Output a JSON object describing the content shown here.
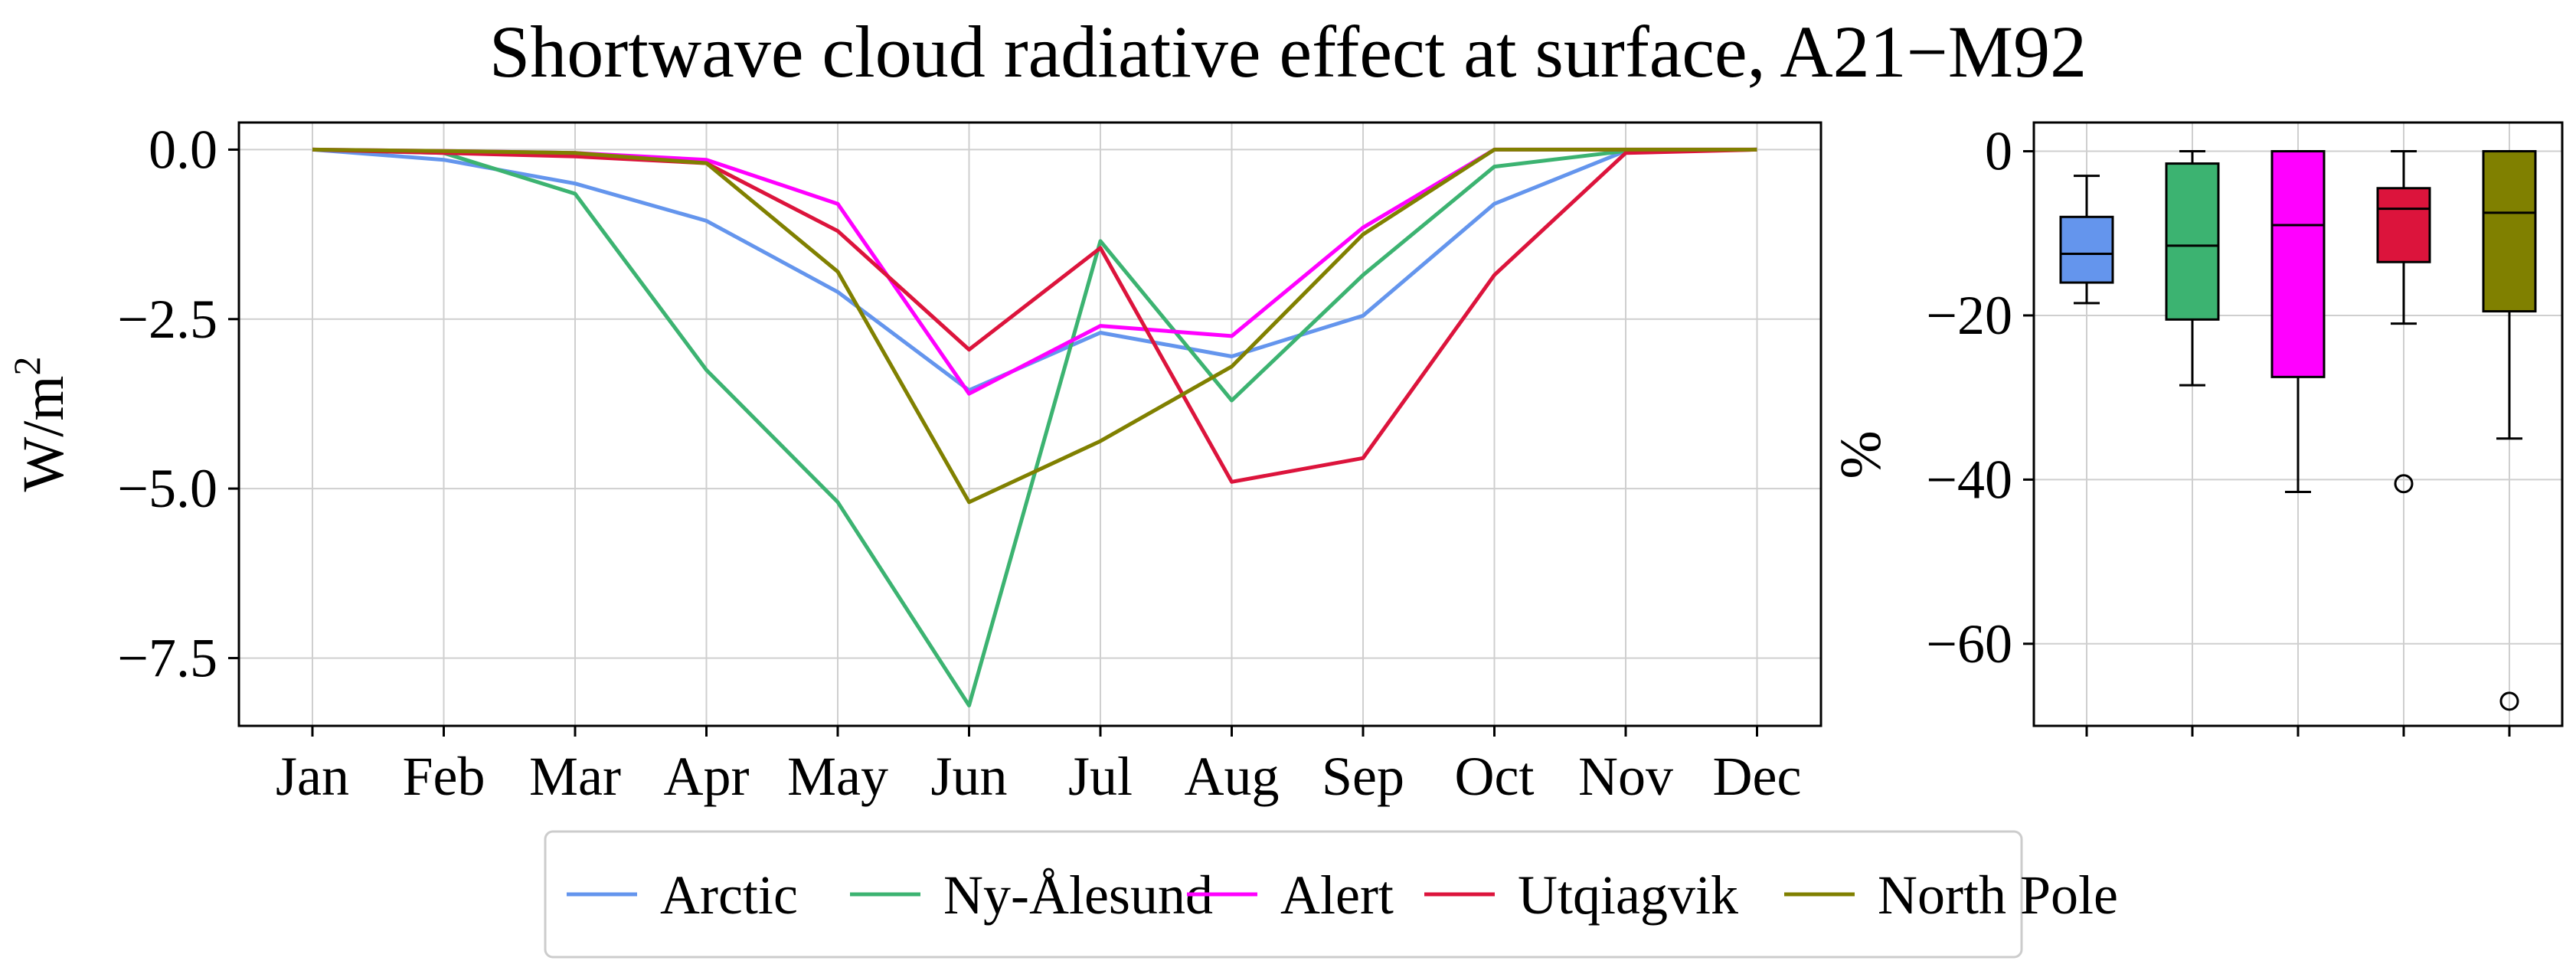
{
  "chart_data": [
    {
      "type": "line",
      "title": "Shortwave cloud radiative effect at surface, A21−M92",
      "xlabel": "",
      "ylabel": "W/m",
      "ylabel_superscript": "2",
      "categories": [
        "Jan",
        "Feb",
        "Mar",
        "Apr",
        "May",
        "Jun",
        "Jul",
        "Aug",
        "Sep",
        "Oct",
        "Nov",
        "Dec"
      ],
      "ylim": [
        -8.5,
        0.4
      ],
      "yticks": [
        0.0,
        -2.5,
        -5.0,
        -7.5
      ],
      "ytick_labels": [
        "0.0",
        "−2.5",
        "−5.0",
        "−7.5"
      ],
      "grid": true,
      "series": [
        {
          "name": "Arctic",
          "color": "#6495ED",
          "values": [
            0.0,
            -0.15,
            -0.5,
            -1.05,
            -2.1,
            -3.55,
            -2.7,
            -3.05,
            -2.45,
            -0.8,
            -0.02,
            0.0
          ]
        },
        {
          "name": "Ny-Ålesund",
          "color": "#3CB371",
          "values": [
            0.0,
            -0.05,
            -0.65,
            -3.25,
            -5.2,
            -8.2,
            -1.35,
            -3.7,
            -1.85,
            -0.25,
            -0.02,
            0.0
          ]
        },
        {
          "name": "Alert",
          "color": "#FF00FF",
          "values": [
            0.0,
            -0.02,
            -0.05,
            -0.15,
            -0.8,
            -3.6,
            -2.6,
            -2.75,
            -1.15,
            0.0,
            0.0,
            0.0
          ]
        },
        {
          "name": "Utqiagvik",
          "color": "#DC143C",
          "values": [
            0.0,
            -0.05,
            -0.1,
            -0.2,
            -1.2,
            -2.95,
            -1.45,
            -4.9,
            -4.55,
            -1.85,
            -0.05,
            0.0
          ]
        },
        {
          "name": "North Pole",
          "color": "#808000",
          "values": [
            0.0,
            -0.02,
            -0.05,
            -0.2,
            -1.8,
            -5.2,
            -4.3,
            -3.2,
            -1.25,
            0.0,
            0.0,
            0.0
          ]
        }
      ]
    },
    {
      "type": "box",
      "title": "",
      "xlabel": "",
      "ylabel": "%",
      "ylim": [
        -70,
        3.5
      ],
      "yticks": [
        0,
        -20,
        -40,
        -60
      ],
      "ytick_labels": [
        "0",
        "−20",
        "−40",
        "−60"
      ],
      "grid": true,
      "boxes": [
        {
          "name": "Arctic",
          "color": "#6495ED",
          "whisker_low": -18.5,
          "q1": -16,
          "median": -12.5,
          "q3": -8,
          "whisker_high": -3,
          "outliers": []
        },
        {
          "name": "Ny-Ålesund",
          "color": "#3CB371",
          "whisker_low": -28.5,
          "q1": -20.5,
          "median": -11.5,
          "q3": -1.5,
          "whisker_high": 0,
          "outliers": []
        },
        {
          "name": "Alert",
          "color": "#FF00FF",
          "whisker_low": -41.5,
          "q1": -27.5,
          "median": -9,
          "q3": 0,
          "whisker_high": 0,
          "outliers": []
        },
        {
          "name": "Utqiagvik",
          "color": "#DC143C",
          "whisker_low": -21,
          "q1": -13.5,
          "median": -7,
          "q3": -4.5,
          "whisker_high": 0,
          "outliers": [
            -40.5
          ]
        },
        {
          "name": "North Pole",
          "color": "#808000",
          "whisker_low": -35,
          "q1": -19.5,
          "median": -7.5,
          "q3": 0,
          "whisker_high": 0,
          "outliers": [
            -67
          ]
        }
      ]
    }
  ],
  "legend": {
    "placement": "bottom-center",
    "entries": [
      {
        "label": "Arctic",
        "color": "#6495ED"
      },
      {
        "label": "Ny-Ålesund",
        "color": "#3CB371"
      },
      {
        "label": "Alert",
        "color": "#FF00FF"
      },
      {
        "label": "Utqiagvik",
        "color": "#DC143C"
      },
      {
        "label": "North Pole",
        "color": "#808000"
      }
    ]
  }
}
